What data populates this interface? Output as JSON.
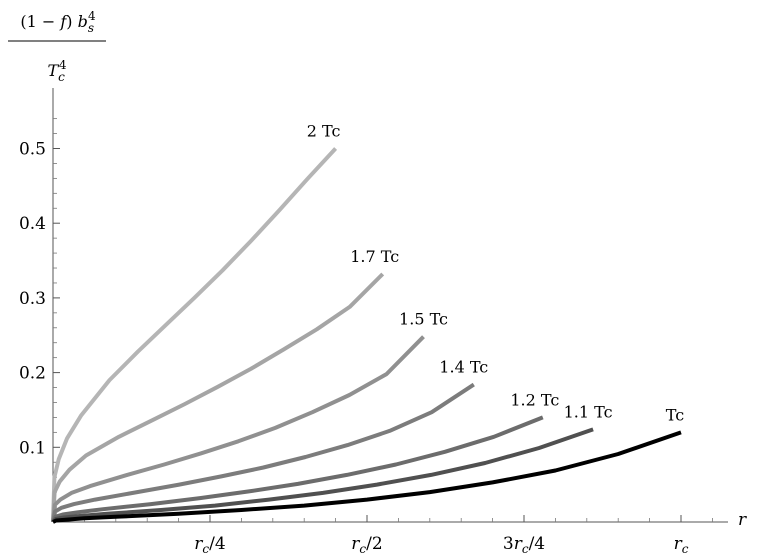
{
  "chart_data": {
    "type": "line",
    "title": "",
    "xlabel": "r",
    "ylabel": {
      "numerator": "(1 − f) b_s^4",
      "denominator": "T_c^4"
    },
    "xlim": [
      0,
      1
    ],
    "ylim": [
      0,
      0.55
    ],
    "x_unit": "r_c",
    "x_ticks": [
      {
        "value": 0.25,
        "label": "r_c/4"
      },
      {
        "value": 0.5,
        "label": "r_c/2"
      },
      {
        "value": 0.75,
        "label": "3r_c/4"
      },
      {
        "value": 1.0,
        "label": "r_c"
      }
    ],
    "y_ticks": [
      0.1,
      0.2,
      0.3,
      0.4,
      0.5
    ],
    "grid": false,
    "legend": "none",
    "series": [
      {
        "name": "2 Tc",
        "color": "#b5b5b5",
        "x": [
          0,
          0.005,
          0.02,
          0.05,
          0.1,
          0.2,
          0.3,
          0.4,
          0.5,
          0.6,
          0.7,
          0.8,
          0.9,
          1.0
        ],
        "y": [
          0,
          0.06,
          0.084,
          0.112,
          0.143,
          0.19,
          0.228,
          0.264,
          0.3,
          0.337,
          0.376,
          0.417,
          0.459,
          0.5
        ],
        "x_end": 0.45
      },
      {
        "name": "1.7 Tc",
        "color": "#a5a5a5",
        "x": [
          0,
          0.005,
          0.02,
          0.05,
          0.1,
          0.2,
          0.3,
          0.4,
          0.5,
          0.6,
          0.7,
          0.8,
          0.9,
          1.0
        ],
        "y": [
          0,
          0.04,
          0.054,
          0.07,
          0.089,
          0.114,
          0.136,
          0.158,
          0.181,
          0.205,
          0.231,
          0.258,
          0.288,
          0.332
        ],
        "x_end": 0.525
      },
      {
        "name": "1.5 Tc",
        "color": "#909090",
        "x": [
          0,
          0.005,
          0.02,
          0.05,
          0.1,
          0.2,
          0.3,
          0.4,
          0.5,
          0.6,
          0.7,
          0.8,
          0.9,
          1.0
        ],
        "y": [
          0,
          0.023,
          0.03,
          0.039,
          0.048,
          0.063,
          0.077,
          0.092,
          0.108,
          0.126,
          0.147,
          0.17,
          0.198,
          0.248
        ],
        "x_end": 0.59
      },
      {
        "name": "1.4 Tc",
        "color": "#7c7c7c",
        "x": [
          0,
          0.005,
          0.02,
          0.05,
          0.1,
          0.2,
          0.3,
          0.4,
          0.5,
          0.6,
          0.7,
          0.8,
          0.9,
          1.0
        ],
        "y": [
          0,
          0.014,
          0.019,
          0.024,
          0.03,
          0.04,
          0.05,
          0.061,
          0.073,
          0.087,
          0.103,
          0.122,
          0.147,
          0.184
        ],
        "x_end": 0.67
      },
      {
        "name": "1.2 Tc",
        "color": "#6c6c6c",
        "x": [
          0,
          0.005,
          0.02,
          0.05,
          0.1,
          0.2,
          0.3,
          0.4,
          0.5,
          0.6,
          0.7,
          0.8,
          0.9,
          1.0
        ],
        "y": [
          0,
          0.007,
          0.01,
          0.013,
          0.017,
          0.024,
          0.032,
          0.041,
          0.051,
          0.063,
          0.077,
          0.094,
          0.114,
          0.14
        ],
        "x_end": 0.78
      },
      {
        "name": "1.1 Tc",
        "color": "#505050",
        "x": [
          0,
          0.005,
          0.02,
          0.05,
          0.1,
          0.2,
          0.3,
          0.4,
          0.5,
          0.6,
          0.7,
          0.8,
          0.9,
          1.0
        ],
        "y": [
          0,
          0.004,
          0.006,
          0.008,
          0.011,
          0.016,
          0.022,
          0.03,
          0.039,
          0.05,
          0.063,
          0.079,
          0.099,
          0.124
        ],
        "x_end": 0.86
      },
      {
        "name": "Tc",
        "color": "#000000",
        "x": [
          0,
          0.005,
          0.02,
          0.05,
          0.1,
          0.2,
          0.3,
          0.4,
          0.5,
          0.6,
          0.7,
          0.8,
          0.9,
          1.0
        ],
        "y": [
          0,
          0.002,
          0.003,
          0.005,
          0.007,
          0.011,
          0.016,
          0.022,
          0.03,
          0.04,
          0.053,
          0.069,
          0.091,
          0.12
        ],
        "x_end": 1.0
      }
    ]
  }
}
